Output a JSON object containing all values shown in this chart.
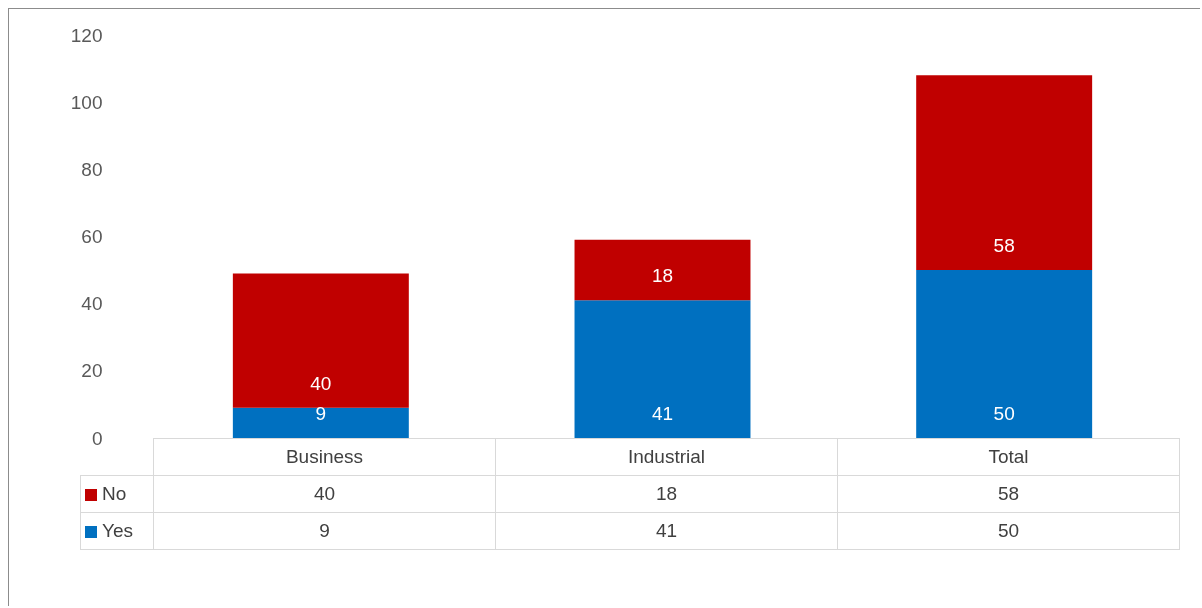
{
  "chart_data": {
    "type": "bar",
    "stacked": true,
    "categories": [
      "Business",
      "Industrial",
      "Total"
    ],
    "series": [
      {
        "name": "Yes",
        "color": "#0070c0",
        "values": [
          9,
          41,
          50
        ],
        "value_labels": [
          "9",
          "41",
          "50"
        ]
      },
      {
        "name": "No",
        "color": "#c00000",
        "values": [
          40,
          18,
          58
        ],
        "value_labels": [
          "40",
          "18",
          "58"
        ]
      }
    ],
    "annotations": [
      "40",
      "18",
      "58",
      "9",
      "41",
      "50"
    ],
    "ylim": [
      0,
      120
    ],
    "yticks": [
      0,
      20,
      40,
      60,
      80,
      100,
      120
    ],
    "grid": false,
    "legend": "bottom"
  }
}
